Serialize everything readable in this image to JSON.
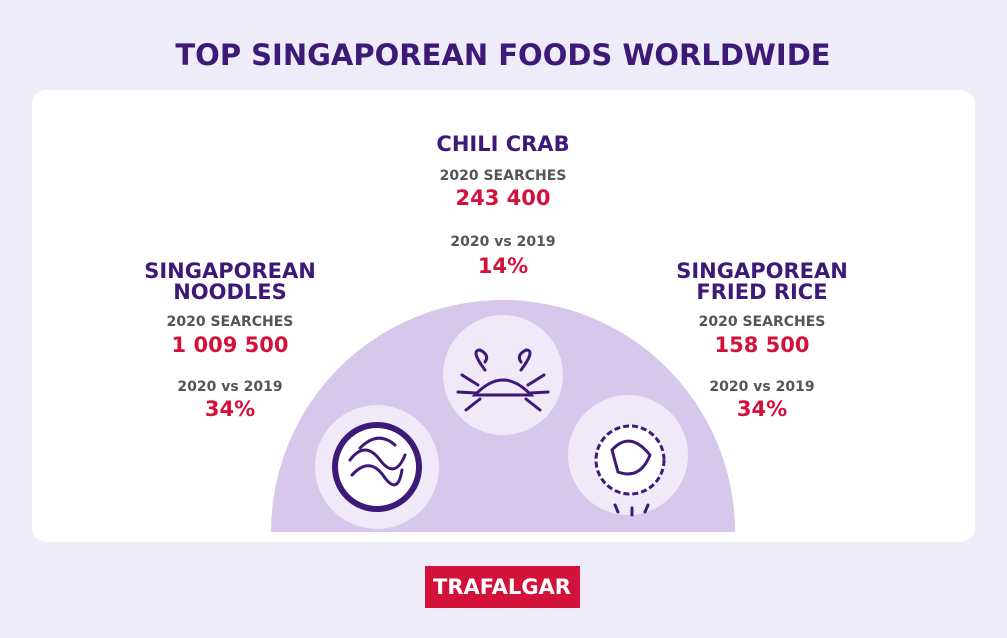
{
  "header": {
    "title": "TOP SINGAPOREAN FOODS WORLDWIDE"
  },
  "foods": [
    {
      "name": [
        "SINGAPOREAN",
        "NOODLES"
      ],
      "searches_label": "2020 SEARCHES",
      "searches": "1 009 500",
      "change_label": "2020 vs 2019",
      "change": "34%"
    },
    {
      "name": [
        "CHILI CRAB"
      ],
      "searches_label": "2020 SEARCHES",
      "searches": "243 400",
      "change_label": "2020 vs 2019",
      "change": "14%"
    },
    {
      "name": [
        "SINGAPOREAN",
        "FRIED RICE"
      ],
      "searches_label": "2020 SEARCHES",
      "searches": "158 500",
      "change_label": "2020 vs 2019",
      "change": "34%"
    }
  ],
  "footer": {
    "logo": "TRAFALGAR"
  }
}
